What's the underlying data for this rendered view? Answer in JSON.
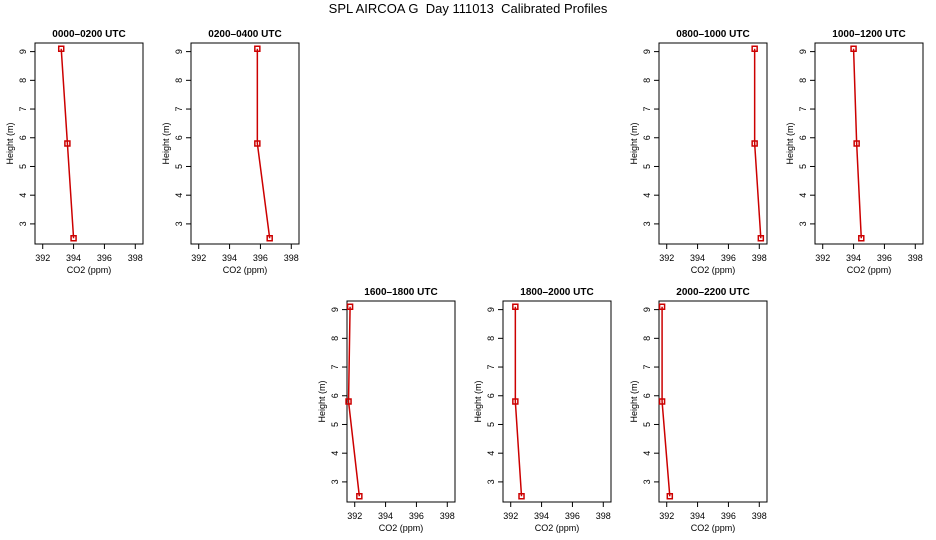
{
  "page": {
    "title": "SPL AIRCOA G  Day 111013  Calibrated Profiles"
  },
  "axis_labels": {
    "x": "CO2 (ppm)",
    "y": "Height (m)"
  },
  "colors": {
    "series": "#cc0000",
    "axes": "#000000"
  },
  "chart_data": [
    {
      "type": "line",
      "title": "0000–0200 UTC",
      "xlabel": "CO2 (ppm)",
      "ylabel": "Height (m)",
      "xlim": [
        391.5,
        398.5
      ],
      "ylim": [
        2.3,
        9.3
      ],
      "x_ticks": [
        392,
        394,
        396,
        398
      ],
      "y_ticks": [
        3,
        4,
        5,
        6,
        7,
        8,
        9
      ],
      "x": [
        394.0,
        393.6,
        393.2
      ],
      "y": [
        2.5,
        5.8,
        9.1
      ]
    },
    {
      "type": "line",
      "title": "0200–0400 UTC",
      "xlabel": "CO2 (ppm)",
      "ylabel": "Height (m)",
      "xlim": [
        391.5,
        398.5
      ],
      "ylim": [
        2.3,
        9.3
      ],
      "x_ticks": [
        392,
        394,
        396,
        398
      ],
      "y_ticks": [
        3,
        4,
        5,
        6,
        7,
        8,
        9
      ],
      "x": [
        396.6,
        395.8,
        395.8
      ],
      "y": [
        2.5,
        5.8,
        9.1
      ]
    },
    {
      "type": "line",
      "title": "0800–1000 UTC",
      "xlabel": "CO2 (ppm)",
      "ylabel": "Height (m)",
      "xlim": [
        391.5,
        398.5
      ],
      "ylim": [
        2.3,
        9.3
      ],
      "x_ticks": [
        392,
        394,
        396,
        398
      ],
      "y_ticks": [
        3,
        4,
        5,
        6,
        7,
        8,
        9
      ],
      "x": [
        398.1,
        397.7,
        397.7
      ],
      "y": [
        2.5,
        5.8,
        9.1
      ]
    },
    {
      "type": "line",
      "title": "1000–1200 UTC",
      "xlabel": "CO2 (ppm)",
      "ylabel": "Height (m)",
      "xlim": [
        391.5,
        398.5
      ],
      "ylim": [
        2.3,
        9.3
      ],
      "x_ticks": [
        392,
        394,
        396,
        398
      ],
      "y_ticks": [
        3,
        4,
        5,
        6,
        7,
        8,
        9
      ],
      "x": [
        394.5,
        394.2,
        394.0
      ],
      "y": [
        2.5,
        5.8,
        9.1
      ]
    },
    {
      "type": "line",
      "title": "1600–1800 UTC",
      "xlabel": "CO2 (ppm)",
      "ylabel": "Height (m)",
      "xlim": [
        391.5,
        398.5
      ],
      "ylim": [
        2.3,
        9.3
      ],
      "x_ticks": [
        392,
        394,
        396,
        398
      ],
      "y_ticks": [
        3,
        4,
        5,
        6,
        7,
        8,
        9
      ],
      "x": [
        392.3,
        391.6,
        391.7
      ],
      "y": [
        2.5,
        5.8,
        9.1
      ]
    },
    {
      "type": "line",
      "title": "1800–2000 UTC",
      "xlabel": "CO2 (ppm)",
      "ylabel": "Height (m)",
      "xlim": [
        391.5,
        398.5
      ],
      "ylim": [
        2.3,
        9.3
      ],
      "x_ticks": [
        392,
        394,
        396,
        398
      ],
      "y_ticks": [
        3,
        4,
        5,
        6,
        7,
        8,
        9
      ],
      "x": [
        392.7,
        392.3,
        392.3
      ],
      "y": [
        2.5,
        5.8,
        9.1
      ]
    },
    {
      "type": "line",
      "title": "2000–2200 UTC",
      "xlabel": "CO2 (ppm)",
      "ylabel": "Height (m)",
      "xlim": [
        391.5,
        398.5
      ],
      "ylim": [
        2.3,
        9.3
      ],
      "x_ticks": [
        392,
        394,
        396,
        398
      ],
      "y_ticks": [
        3,
        4,
        5,
        6,
        7,
        8,
        9
      ],
      "x": [
        392.2,
        391.7,
        391.7
      ],
      "y": [
        2.5,
        5.8,
        9.1
      ]
    }
  ]
}
